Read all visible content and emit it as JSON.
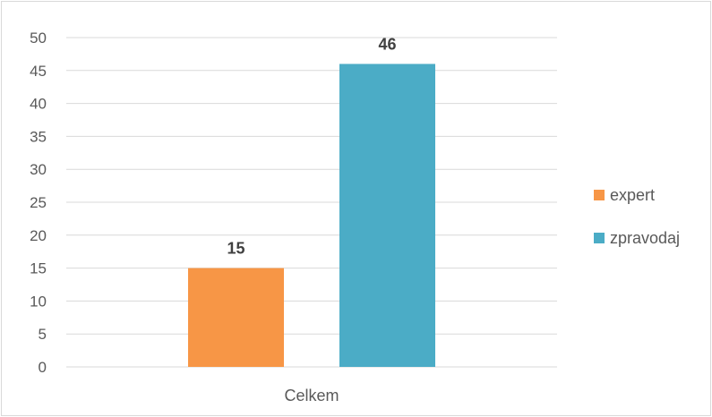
{
  "chart_data": {
    "type": "bar",
    "categories": [
      "Celkem"
    ],
    "series": [
      {
        "name": "expert",
        "values": [
          15
        ],
        "color": "#f79646"
      },
      {
        "name": "zpravodaj",
        "values": [
          46
        ],
        "color": "#4bacc6"
      }
    ],
    "ylim": [
      0,
      50
    ],
    "ytick_step": 5,
    "grid": true,
    "legend_position": "right"
  }
}
